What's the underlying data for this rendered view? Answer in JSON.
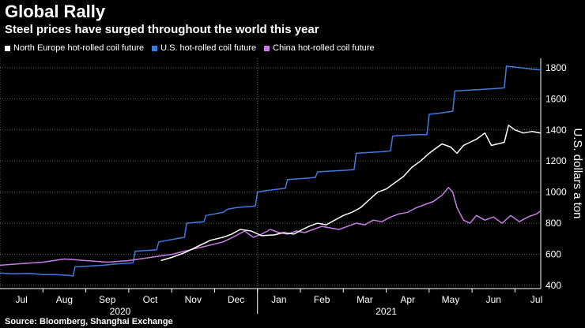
{
  "header": {
    "title": "Global Rally",
    "subtitle": "Steel prices have surged throughout the world this year"
  },
  "footer": {
    "source": "Source: Bloomberg, Shanghai Exchange"
  },
  "colors": {
    "background": "#000000",
    "north_europe": "#ffffff",
    "us": "#3d7be0",
    "china": "#c77de8",
    "grid": "#666666"
  },
  "chart_data": {
    "type": "line",
    "title": "Global Rally",
    "subtitle": "Steel prices have surged throughout the world this year",
    "xlabel": "",
    "ylabel": "U.S. dollars a ton",
    "ylim": [
      380,
      1860
    ],
    "yticks": [
      400,
      600,
      800,
      1000,
      1200,
      1400,
      1600,
      1800
    ],
    "ytick_labels": [
      "400",
      "600",
      "800",
      "1000",
      "1200",
      "1400",
      "1600",
      "1800"
    ],
    "x_unit": "months since 2020-07-01",
    "xlim": [
      0,
      12.6
    ],
    "xticks": [
      {
        "label": "Jul",
        "pos": 0.5
      },
      {
        "label": "Aug",
        "pos": 1.5
      },
      {
        "label": "Sep",
        "pos": 2.5
      },
      {
        "label": "Oct",
        "pos": 3.5
      },
      {
        "label": "Nov",
        "pos": 4.5
      },
      {
        "label": "Dec",
        "pos": 5.5
      },
      {
        "label": "Jan",
        "pos": 6.5
      },
      {
        "label": "Feb",
        "pos": 7.5
      },
      {
        "label": "Mar",
        "pos": 8.5
      },
      {
        "label": "Apr",
        "pos": 9.5
      },
      {
        "label": "May",
        "pos": 10.5
      },
      {
        "label": "Jun",
        "pos": 11.5
      },
      {
        "label": "Jul",
        "pos": 12.5
      }
    ],
    "year_labels": [
      {
        "label": "2020",
        "pos": 2.8
      },
      {
        "label": "2021",
        "pos": 9.0
      }
    ],
    "year_dividers": [
      0,
      6
    ],
    "grid": true,
    "legend_position": "top-left",
    "series": [
      {
        "name": "North Europe hot-rolled coil future",
        "color": "#ffffff",
        "x": [
          3.75,
          4.0,
          4.3,
          4.6,
          4.9,
          5.2,
          5.4,
          5.6,
          5.85,
          6.1,
          6.4,
          6.6,
          6.85,
          7.05,
          7.2,
          7.4,
          7.6,
          7.8,
          8.0,
          8.2,
          8.4,
          8.6,
          8.8,
          9.0,
          9.2,
          9.4,
          9.6,
          9.8,
          10.0,
          10.15,
          10.3,
          10.5,
          10.65,
          10.8,
          10.95,
          11.1,
          11.3,
          11.45,
          11.6,
          11.75,
          11.85,
          12.0,
          12.2,
          12.4,
          12.6
        ],
        "values": [
          560,
          580,
          610,
          650,
          690,
          710,
          730,
          760,
          750,
          720,
          725,
          740,
          730,
          760,
          780,
          800,
          790,
          820,
          850,
          870,
          900,
          950,
          1000,
          1020,
          1060,
          1100,
          1160,
          1200,
          1250,
          1280,
          1310,
          1290,
          1250,
          1300,
          1320,
          1340,
          1380,
          1300,
          1310,
          1320,
          1430,
          1400,
          1380,
          1390,
          1380
        ]
      },
      {
        "name": "U.S. hot-rolled coil future",
        "color": "#3d7be0",
        "x": [
          0,
          0.3,
          0.7,
          1.0,
          1.3,
          1.6,
          1.7,
          1.75,
          2.1,
          2.4,
          2.6,
          2.8,
          3.1,
          3.15,
          3.4,
          3.65,
          3.7,
          3.9,
          4.1,
          4.3,
          4.35,
          4.55,
          4.75,
          4.8,
          5.0,
          5.2,
          5.3,
          5.5,
          5.7,
          5.95,
          6.0,
          6.2,
          6.5,
          6.65,
          6.7,
          6.9,
          7.2,
          7.35,
          7.4,
          7.7,
          8.0,
          8.25,
          8.3,
          8.6,
          8.9,
          9.1,
          9.15,
          9.4,
          9.7,
          9.95,
          10.0,
          10.3,
          10.55,
          10.6,
          10.9,
          11.2,
          11.5,
          11.75,
          11.8,
          12.1,
          12.4,
          12.6
        ],
        "values": [
          480,
          475,
          478,
          470,
          470,
          465,
          460,
          520,
          525,
          530,
          535,
          540,
          545,
          620,
          625,
          630,
          680,
          690,
          700,
          710,
          800,
          805,
          810,
          850,
          860,
          870,
          890,
          900,
          905,
          910,
          1000,
          1010,
          1020,
          1025,
          1080,
          1085,
          1090,
          1095,
          1130,
          1135,
          1140,
          1145,
          1250,
          1255,
          1260,
          1265,
          1360,
          1365,
          1370,
          1370,
          1500,
          1510,
          1520,
          1650,
          1655,
          1660,
          1665,
          1670,
          1810,
          1800,
          1790,
          1785
        ]
      },
      {
        "name": "China hot-rolled coil future",
        "color": "#c77de8",
        "x": [
          0,
          0.5,
          1.0,
          1.5,
          2.0,
          2.5,
          3.0,
          3.5,
          4.0,
          4.3,
          4.6,
          4.9,
          5.2,
          5.5,
          5.7,
          5.9,
          6.1,
          6.3,
          6.5,
          6.7,
          6.9,
          7.1,
          7.3,
          7.5,
          7.7,
          7.9,
          8.1,
          8.3,
          8.5,
          8.7,
          8.9,
          9.1,
          9.3,
          9.5,
          9.7,
          9.9,
          10.1,
          10.3,
          10.45,
          10.55,
          10.65,
          10.8,
          10.95,
          11.1,
          11.3,
          11.5,
          11.7,
          11.9,
          12.1,
          12.3,
          12.5,
          12.6
        ],
        "values": [
          530,
          540,
          550,
          570,
          560,
          550,
          560,
          580,
          600,
          620,
          640,
          660,
          680,
          720,
          750,
          710,
          730,
          760,
          740,
          730,
          750,
          740,
          760,
          780,
          770,
          760,
          780,
          800,
          790,
          820,
          810,
          840,
          860,
          870,
          900,
          920,
          940,
          980,
          1030,
          1000,
          900,
          820,
          800,
          850,
          820,
          840,
          800,
          850,
          810,
          840,
          860,
          880
        ]
      }
    ]
  }
}
